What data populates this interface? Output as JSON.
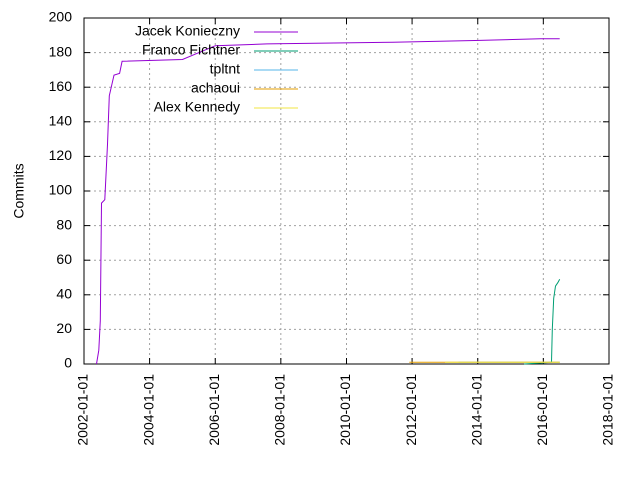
{
  "chart_data": {
    "type": "line",
    "y_label": "Commits",
    "xlim": [
      "2002-01-01",
      "2018-01-01"
    ],
    "xticks": [
      "2002-01-01",
      "2004-01-01",
      "2006-01-01",
      "2008-01-01",
      "2010-01-01",
      "2012-01-01",
      "2014-01-01",
      "2016-01-01",
      "2018-01-01"
    ],
    "ylim": [
      0,
      200
    ],
    "yticks": [
      0,
      20,
      40,
      60,
      80,
      100,
      120,
      140,
      160,
      180,
      200
    ],
    "grid": true,
    "legend": "top-left",
    "series": [
      {
        "name": "Jacek Konieczny",
        "color": "#9400d3",
        "x": [
          "2002-05-20",
          "2002-06-15",
          "2002-07-01",
          "2002-07-15",
          "2002-08-20",
          "2002-09-20",
          "2002-10-10",
          "2002-12-01",
          "2003-02-01",
          "2003-03-01",
          "2005-01-01",
          "2006-01-01",
          "2007-08-01",
          "2011-06-01",
          "2013-12-01",
          "2015-12-01",
          "2016-07-01"
        ],
        "values": [
          0,
          8,
          25,
          93,
          95,
          127,
          155,
          167,
          168,
          175,
          176,
          184,
          185,
          186,
          187,
          188,
          188
        ]
      },
      {
        "name": "Franco Fichtner",
        "color": "#009e73",
        "x": [
          "2015-06-01",
          "2016-04-01",
          "2016-04-10",
          "2016-04-25",
          "2016-05-15",
          "2016-06-10",
          "2016-07-01"
        ],
        "values": [
          0,
          1,
          20,
          38,
          45,
          47,
          49
        ]
      },
      {
        "name": "tpltnt",
        "color": "#56b4e9",
        "x": [
          "2013-06-01",
          "2016-07-01"
        ],
        "values": [
          1,
          1
        ]
      },
      {
        "name": "achaoui",
        "color": "#e69f00",
        "x": [
          "2011-12-01",
          "2016-07-01"
        ],
        "values": [
          1,
          1
        ]
      },
      {
        "name": "Alex Kennedy",
        "color": "#f0e442",
        "x": [
          "2013-01-01",
          "2016-07-01"
        ],
        "values": [
          1,
          1
        ]
      }
    ]
  }
}
